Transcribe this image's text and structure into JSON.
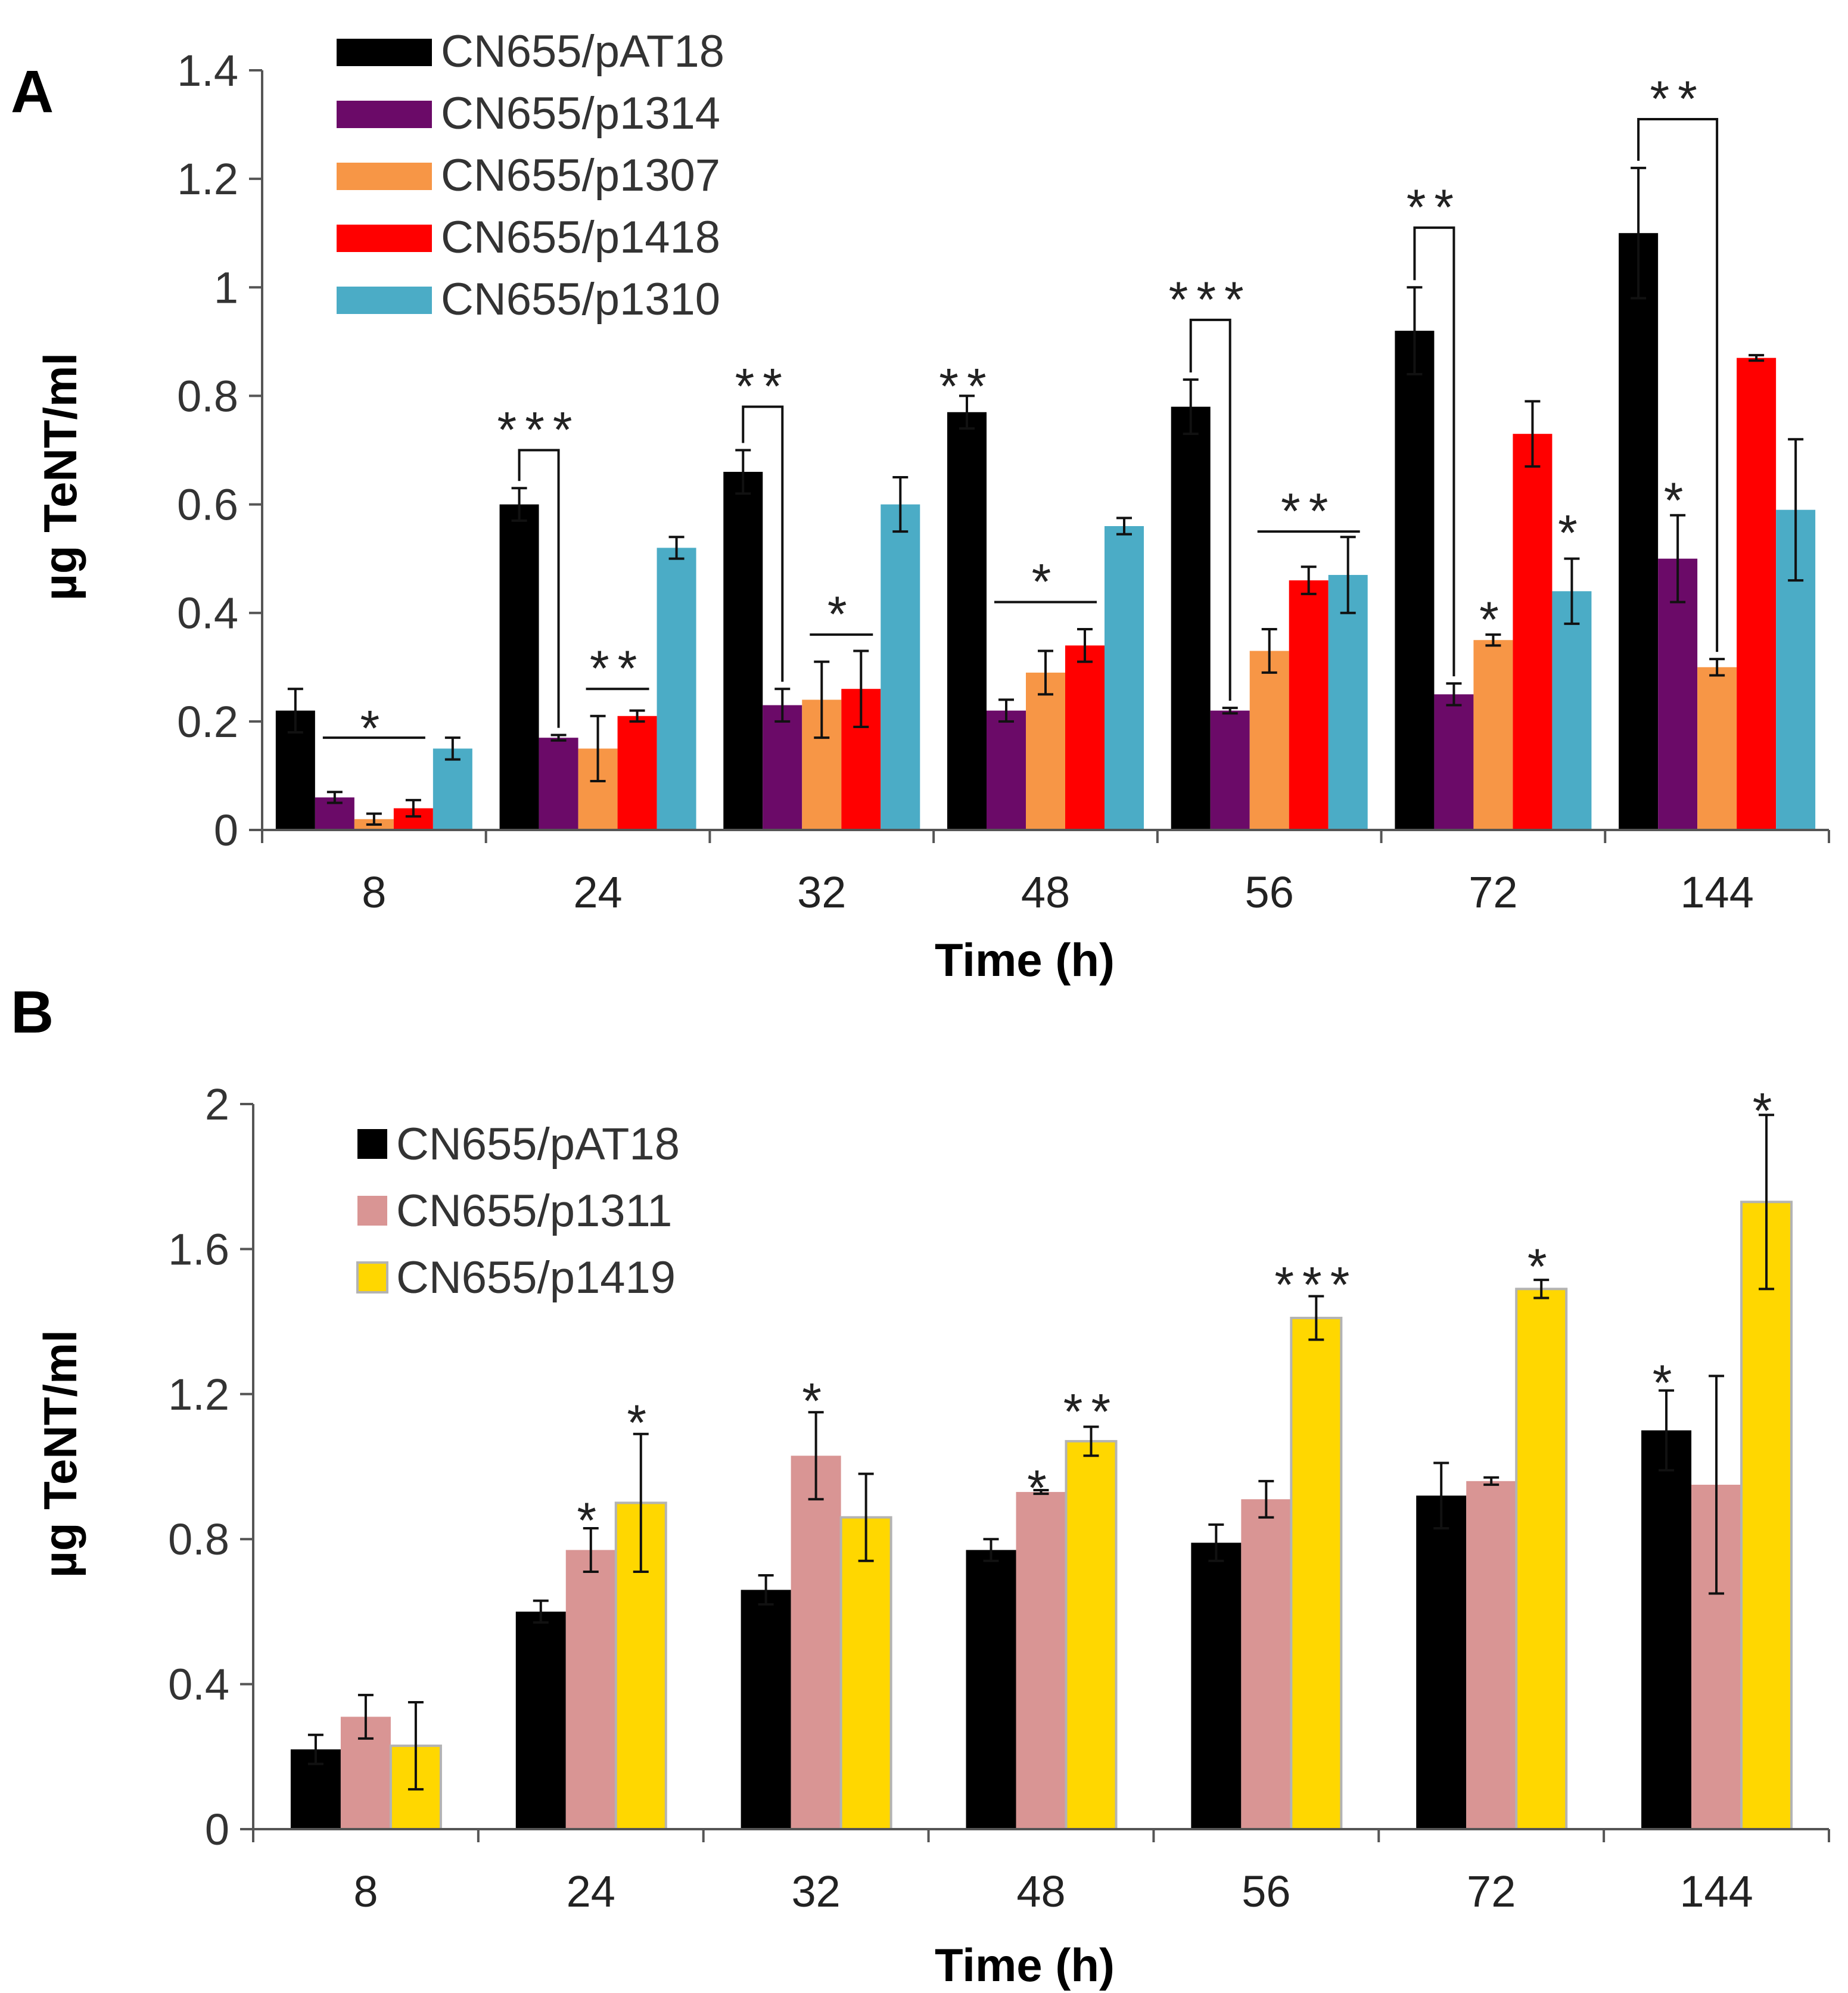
{
  "chart_data": [
    {
      "type": "bar",
      "panel_label": "A",
      "title": "",
      "xlabel": "Time (h)",
      "ylabel": "µg TeNT/ml",
      "ylim": [
        0,
        1.4
      ],
      "yticks": [
        0,
        0.2,
        0.4,
        0.6,
        0.8,
        1,
        1.2,
        1.4
      ],
      "ytick_labels": [
        "0",
        "0.2",
        "0.4",
        "0.6",
        "0.8",
        "1",
        "1.2",
        "1.4"
      ],
      "categories": [
        "8",
        "24",
        "32",
        "48",
        "56",
        "72",
        "144"
      ],
      "legend_position": "top-left",
      "series": [
        {
          "name": "CN655/pAT18",
          "color": "#000000",
          "values": [
            0.22,
            0.6,
            0.66,
            0.77,
            0.78,
            0.92,
            1.1
          ],
          "errors": [
            0.04,
            0.03,
            0.04,
            0.03,
            0.05,
            0.08,
            0.12
          ]
        },
        {
          "name": "CN655/p1314",
          "color": "#6b0a68",
          "values": [
            0.06,
            0.17,
            0.23,
            0.22,
            0.22,
            0.25,
            0.5
          ],
          "errors": [
            0.01,
            0.005,
            0.03,
            0.02,
            0.005,
            0.02,
            0.08
          ]
        },
        {
          "name": "CN655/p1307",
          "color": "#f79646",
          "values": [
            0.02,
            0.15,
            0.24,
            0.29,
            0.33,
            0.35,
            0.3
          ],
          "errors": [
            0.01,
            0.06,
            0.07,
            0.04,
            0.04,
            0.01,
            0.015
          ]
        },
        {
          "name": "CN655/p1418",
          "color": "#ff0000",
          "values": [
            0.04,
            0.21,
            0.26,
            0.34,
            0.46,
            0.73,
            0.87
          ],
          "errors": [
            0.015,
            0.01,
            0.07,
            0.03,
            0.025,
            0.06,
            0.005
          ]
        },
        {
          "name": "CN655/p1310",
          "color": "#4bacc6",
          "values": [
            0.15,
            0.52,
            0.6,
            0.56,
            0.47,
            0.44,
            0.59
          ],
          "errors": [
            0.02,
            0.02,
            0.05,
            0.015,
            0.07,
            0.06,
            0.13
          ]
        }
      ],
      "annotations": [
        {
          "text": "*",
          "category": "8",
          "from_series": 1,
          "to_series": 3,
          "style": "line",
          "y": 0.17,
          "label_y": 0.2
        },
        {
          "text": "***",
          "category": "24",
          "from_series": 0,
          "to_series": 1,
          "style": "bracket",
          "y": 0.7,
          "label_y": 0.75
        },
        {
          "text": "**",
          "category": "24",
          "from_series": 2,
          "to_series": 3,
          "style": "line",
          "y": 0.26,
          "label_y": 0.31
        },
        {
          "text": "**",
          "category": "32",
          "from_series": 0,
          "to_series": 1,
          "style": "bracket",
          "y": 0.78,
          "label_y": 0.83
        },
        {
          "text": "*",
          "category": "32",
          "from_series": 2,
          "to_series": 3,
          "style": "line",
          "y": 0.36,
          "label_y": 0.41
        },
        {
          "text": "**",
          "category": "48",
          "series": 0,
          "style": "label",
          "label_y": 0.83
        },
        {
          "text": "*",
          "category": "48",
          "from_series": 1,
          "to_series": 3,
          "style": "line",
          "y": 0.42,
          "label_y": 0.47
        },
        {
          "text": "***",
          "category": "56",
          "from_series": 0,
          "to_series": 1,
          "style": "bracket",
          "y": 0.94,
          "label_y": 0.99
        },
        {
          "text": "**",
          "category": "56",
          "from_series": 2,
          "to_series": 4,
          "style": "line",
          "y": 0.55,
          "label_y": 0.6
        },
        {
          "text": "**",
          "category": "72",
          "from_series": 0,
          "to_series": 1,
          "style": "bracket",
          "y": 1.11,
          "label_y": 1.16
        },
        {
          "text": "*",
          "category": "72",
          "series": 2,
          "style": "label",
          "label_y": 0.4
        },
        {
          "text": "*",
          "category": "72",
          "series": 4,
          "style": "label",
          "label_y": 0.56
        },
        {
          "text": "**",
          "category": "144",
          "from_series": 0,
          "to_series": 2,
          "style": "bracket",
          "y": 1.31,
          "label_y": 1.36
        },
        {
          "text": "*",
          "category": "144",
          "series": 1,
          "style": "label",
          "label_y": 0.62
        }
      ]
    },
    {
      "type": "bar",
      "panel_label": "B",
      "title": "",
      "xlabel": "Time (h)",
      "ylabel": "µg TeNT/ml",
      "ylim": [
        0,
        2
      ],
      "yticks": [
        0,
        0.4,
        0.8,
        1.2,
        1.6,
        2
      ],
      "ytick_labels": [
        "0",
        "0.4",
        "0.8",
        "1.2",
        "1.6",
        "2"
      ],
      "categories": [
        "8",
        "24",
        "32",
        "48",
        "56",
        "72",
        "144"
      ],
      "legend_position": "top-left",
      "series": [
        {
          "name": "CN655/pAT18",
          "color": "#000000",
          "values": [
            0.22,
            0.6,
            0.66,
            0.77,
            0.79,
            0.92,
            1.1
          ],
          "errors": [
            0.04,
            0.03,
            0.04,
            0.03,
            0.05,
            0.09,
            0.11
          ]
        },
        {
          "name": "CN655/p1311",
          "color": "#d99594",
          "values": [
            0.31,
            0.77,
            1.03,
            0.93,
            0.91,
            0.96,
            0.95
          ],
          "errors": [
            0.06,
            0.06,
            0.12,
            0.005,
            0.05,
            0.01,
            0.3
          ]
        },
        {
          "name": "CN655/p1419",
          "color": "#ffd700",
          "values": [
            0.23,
            0.9,
            0.86,
            1.07,
            1.41,
            1.49,
            1.73
          ],
          "errors": [
            0.12,
            0.19,
            0.12,
            0.04,
            0.06,
            0.025,
            0.24
          ]
        }
      ],
      "annotations": [
        {
          "text": "*",
          "category": "24",
          "series": 1,
          "style": "label",
          "label_y": 0.87
        },
        {
          "text": "*",
          "category": "24",
          "series": 2,
          "style": "label",
          "label_y": 1.14
        },
        {
          "text": "*",
          "category": "32",
          "series": 1,
          "style": "label",
          "label_y": 1.2
        },
        {
          "text": "*",
          "category": "48",
          "series": 1,
          "style": "label",
          "label_y": 0.96
        },
        {
          "text": "**",
          "category": "48",
          "series": 2,
          "style": "label",
          "label_y": 1.17
        },
        {
          "text": "***",
          "category": "56",
          "series": 2,
          "style": "label",
          "label_y": 1.52
        },
        {
          "text": "*",
          "category": "72",
          "series": 2,
          "style": "label",
          "label_y": 1.57
        },
        {
          "text": "*",
          "category": "144",
          "series": 0,
          "style": "label",
          "label_y": 1.25
        },
        {
          "text": "*",
          "category": "144",
          "series": 2,
          "style": "label",
          "label_y": 2.0
        }
      ]
    }
  ]
}
